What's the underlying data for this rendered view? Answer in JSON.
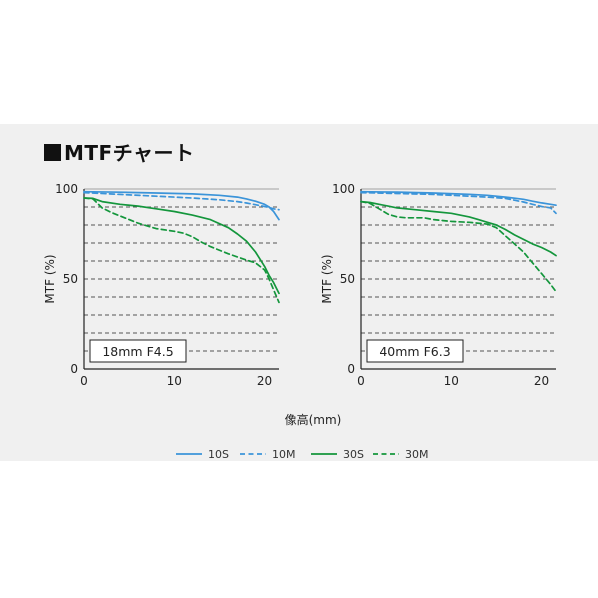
{
  "title": "MTFチャート",
  "colors": {
    "s10": "#3b94d9",
    "s30": "#14963c",
    "grid": "#555555",
    "axis": "#222222"
  },
  "chart_data": [
    {
      "type": "line",
      "label": "18mm F4.5",
      "ylabel": "MTF (%)",
      "xlabel": "",
      "xlim": [
        0,
        21.6
      ],
      "ylim": [
        0,
        100
      ],
      "xticks": [
        0,
        10,
        20
      ],
      "yticks": [
        0,
        50,
        100
      ],
      "grid": true,
      "series": [
        {
          "name": "10S",
          "style": "solid",
          "color": "#3b94d9",
          "x": [
            0,
            4,
            8,
            12,
            15,
            17,
            18,
            19,
            20,
            20.5,
            21,
            21.6
          ],
          "y": [
            98.5,
            98.2,
            97.8,
            97.3,
            96.5,
            95.5,
            94.5,
            93.2,
            91.5,
            90,
            87.5,
            83
          ]
        },
        {
          "name": "10M",
          "style": "dashed",
          "color": "#3b94d9",
          "x": [
            0,
            4,
            8,
            12,
            15,
            17,
            18,
            19,
            20,
            20.5,
            21,
            21.6
          ],
          "y": [
            98,
            97,
            96,
            95,
            94,
            93,
            92.2,
            91.3,
            90.3,
            89.7,
            89,
            88.5
          ]
        },
        {
          "name": "30S",
          "style": "solid",
          "color": "#14963c",
          "x": [
            0,
            1,
            2,
            4,
            6,
            8,
            10,
            12,
            14,
            16,
            17,
            18,
            19,
            20,
            20.5,
            21,
            21.6
          ],
          "y": [
            95,
            94.8,
            93,
            91.5,
            90.5,
            89,
            87.5,
            85.5,
            83,
            78.5,
            75,
            71,
            65,
            57,
            52,
            48,
            42
          ]
        },
        {
          "name": "30M",
          "style": "dashed",
          "color": "#14963c",
          "x": [
            0,
            1,
            2,
            3,
            4,
            6,
            8,
            10,
            11,
            12,
            13,
            14,
            16,
            18,
            19,
            20,
            20.5,
            21,
            21.6
          ],
          "y": [
            95,
            94.5,
            89.5,
            87,
            85,
            81,
            78,
            76.5,
            75.5,
            73.5,
            70.5,
            68,
            64,
            60.5,
            59,
            55,
            50,
            44,
            37
          ]
        }
      ]
    },
    {
      "type": "line",
      "label": "40mm F6.3",
      "ylabel": "MTF (%)",
      "xlabel": "",
      "xlim": [
        0,
        21.6
      ],
      "ylim": [
        0,
        100
      ],
      "xticks": [
        0,
        10,
        20
      ],
      "yticks": [
        0,
        50,
        100
      ],
      "grid": true,
      "series": [
        {
          "name": "10S",
          "style": "solid",
          "color": "#3b94d9",
          "x": [
            0,
            4,
            8,
            12,
            14,
            16,
            18,
            19,
            20,
            21,
            21.6
          ],
          "y": [
            98.5,
            98.3,
            97.8,
            97,
            96.5,
            95.5,
            94.3,
            93.2,
            92.3,
            91.5,
            91
          ]
        },
        {
          "name": "10M",
          "style": "dashed",
          "color": "#3b94d9",
          "x": [
            0,
            4,
            8,
            12,
            14,
            16,
            17,
            18,
            19,
            20,
            21,
            21.6
          ],
          "y": [
            98,
            97.5,
            97,
            96,
            95.5,
            94.8,
            93.8,
            92.8,
            91.5,
            90.3,
            89.5,
            86.5
          ]
        },
        {
          "name": "30S",
          "style": "solid",
          "color": "#14963c",
          "x": [
            0,
            1,
            2,
            3,
            4,
            6,
            8,
            10,
            12,
            13,
            14,
            15,
            16,
            17,
            18,
            19,
            20,
            21,
            21.6
          ],
          "y": [
            93,
            92.5,
            91.5,
            90.5,
            89.5,
            88.5,
            87.5,
            86.5,
            84.5,
            83,
            81.5,
            80,
            77.5,
            74.5,
            72,
            69.5,
            67.5,
            65,
            63
          ]
        },
        {
          "name": "30M",
          "style": "dashed",
          "color": "#14963c",
          "x": [
            0,
            1,
            2,
            3,
            4,
            5,
            6,
            7,
            8,
            10,
            12,
            14,
            15,
            16,
            17,
            18,
            19,
            20,
            21,
            21.6
          ],
          "y": [
            93,
            92,
            89,
            86,
            84.5,
            84,
            84,
            84,
            83,
            82,
            81.5,
            80.5,
            78.5,
            74,
            69.5,
            65,
            59,
            53,
            47,
            43
          ]
        }
      ]
    }
  ],
  "xaxis_label": "像高(mm)",
  "legend": [
    {
      "name": "10S",
      "style": "solid",
      "color": "#3b94d9"
    },
    {
      "name": "10M",
      "style": "dashed",
      "color": "#3b94d9"
    },
    {
      "name": "30S",
      "style": "solid",
      "color": "#14963c"
    },
    {
      "name": "30M",
      "style": "dashed",
      "color": "#14963c"
    }
  ]
}
